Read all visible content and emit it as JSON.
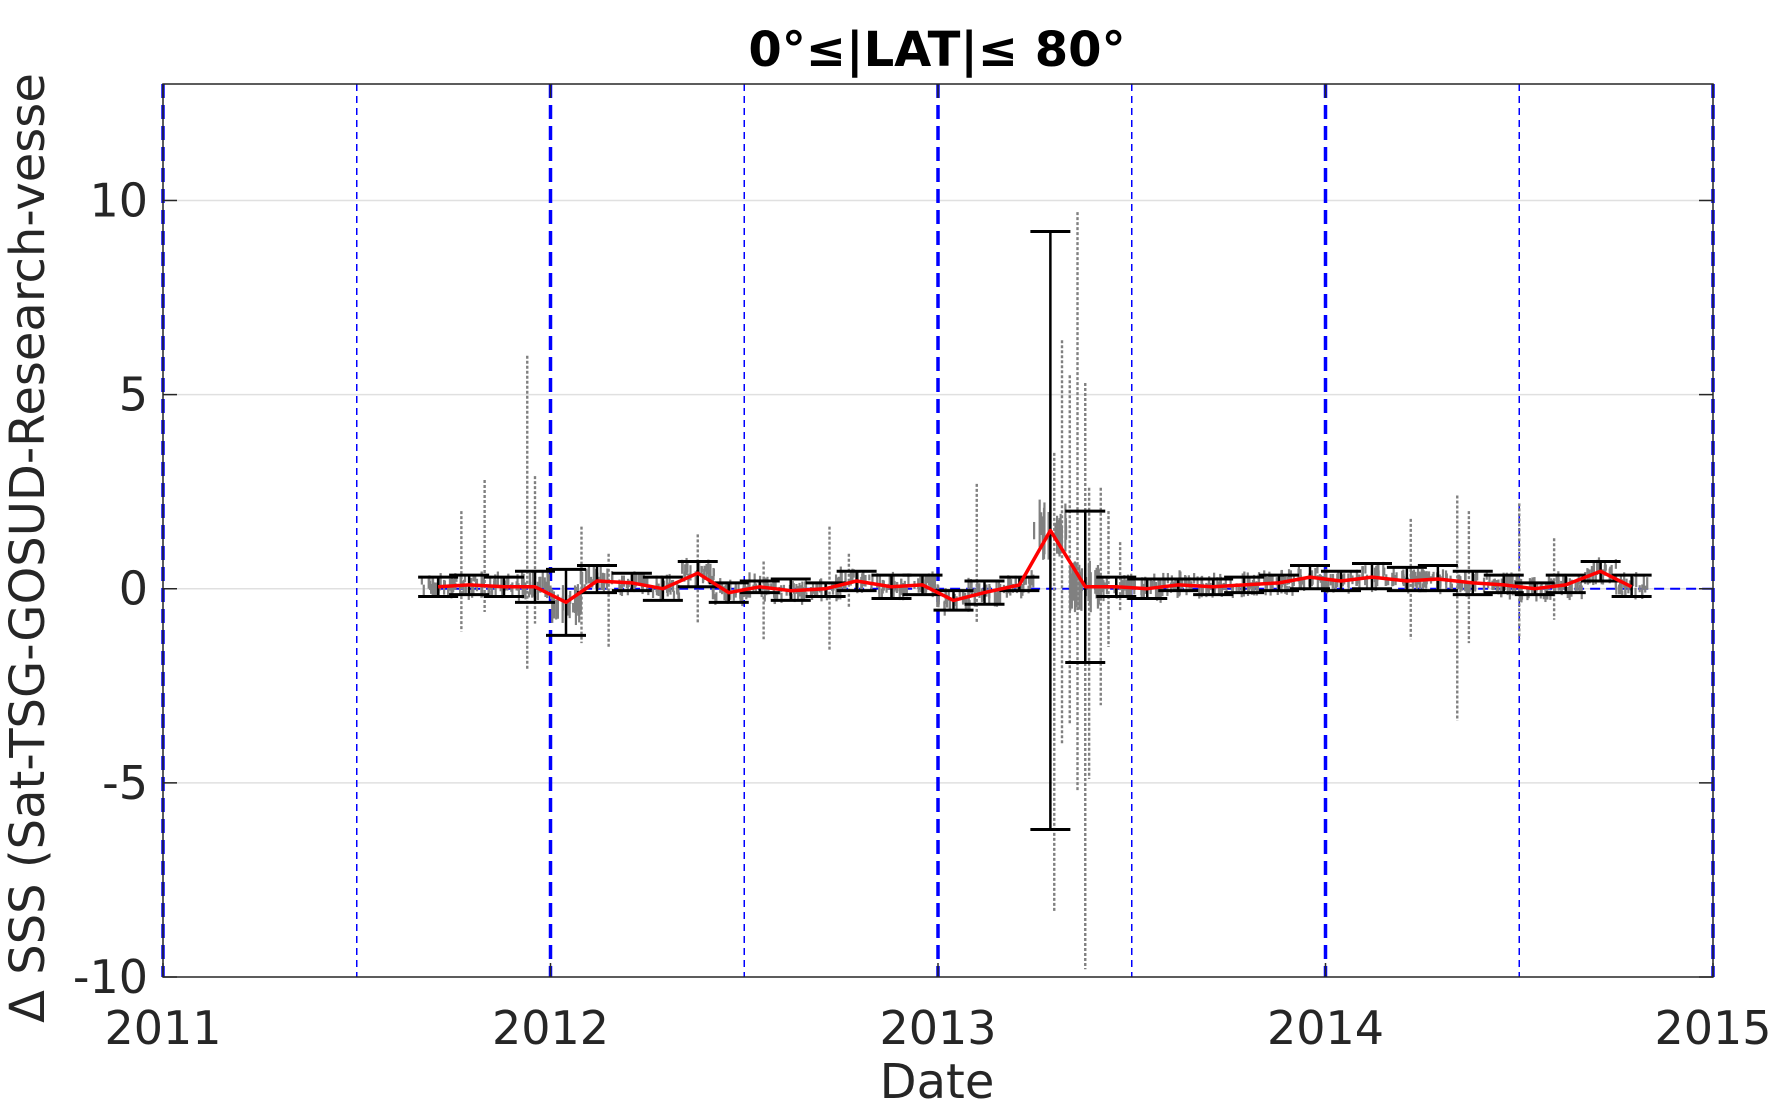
{
  "chart_data": {
    "type": "scatter",
    "title": "0°≤|LAT|≤ 80°",
    "xlabel": "Date",
    "ylabel": "Δ SSS (Sat-TSG-GOSUD-Research-vesse",
    "xlim": [
      2011,
      2015
    ],
    "ylim": [
      -10,
      13
    ],
    "x_ticks": [
      "2011",
      "2012",
      "2013",
      "2014",
      "2015"
    ],
    "y_ticks": [
      "-10",
      "-5",
      "0",
      "5",
      "10"
    ],
    "grid": "horizontal",
    "colors": {
      "scatter": "#808080",
      "mean_line": "#ff0000",
      "error_bars": "#000000",
      "reference_lines": "#0000ff",
      "grid": "#e0e0e0"
    },
    "year_lines": [
      2011,
      2012,
      2013,
      2014,
      2015
    ],
    "half_year_lines": [
      2011.5,
      2012.5,
      2013.5,
      2014.5
    ],
    "series": [
      {
        "kind": "monthly_mean",
        "x": [
          2011.71,
          2011.79,
          2011.88,
          2011.96,
          2012.04,
          2012.12,
          2012.21,
          2012.29,
          2012.38,
          2012.46,
          2012.54,
          2012.62,
          2012.71,
          2012.79,
          2012.88,
          2012.96,
          2013.04,
          2013.12,
          2013.21,
          2013.29,
          2013.38,
          2013.46,
          2013.54,
          2013.62,
          2013.71,
          2013.79,
          2013.88,
          2013.96,
          2014.04,
          2014.12,
          2014.21,
          2014.29,
          2014.38,
          2014.46,
          2014.54,
          2014.62,
          2014.71,
          2014.79
        ],
        "y": [
          0.05,
          0.1,
          0.05,
          0.05,
          -0.35,
          0.2,
          0.15,
          0.0,
          0.4,
          -0.1,
          0.05,
          -0.05,
          0.0,
          0.2,
          0.05,
          0.1,
          -0.3,
          -0.1,
          0.1,
          1.5,
          0.05,
          0.05,
          0.0,
          0.1,
          0.05,
          0.1,
          0.15,
          0.3,
          0.2,
          0.3,
          0.2,
          0.25,
          0.15,
          0.1,
          0.0,
          0.1,
          0.45,
          0.05
        ]
      },
      {
        "kind": "error_bars",
        "x": [
          2011.71,
          2011.79,
          2011.88,
          2011.96,
          2012.04,
          2012.12,
          2012.21,
          2012.29,
          2012.38,
          2012.46,
          2012.54,
          2012.62,
          2012.71,
          2012.79,
          2012.88,
          2012.96,
          2013.04,
          2013.12,
          2013.21,
          2013.29,
          2013.38,
          2013.46,
          2013.54,
          2013.62,
          2013.71,
          2013.79,
          2013.88,
          2013.96,
          2014.04,
          2014.12,
          2014.21,
          2014.29,
          2014.38,
          2014.46,
          2014.54,
          2014.62,
          2014.71,
          2014.79
        ],
        "low": [
          -0.2,
          -0.15,
          -0.2,
          -0.35,
          -1.2,
          -0.1,
          -0.05,
          -0.3,
          0.05,
          -0.35,
          -0.1,
          -0.3,
          -0.2,
          -0.05,
          -0.25,
          -0.15,
          -0.55,
          -0.4,
          -0.05,
          -6.2,
          -1.9,
          -0.2,
          -0.25,
          -0.05,
          -0.15,
          -0.1,
          -0.05,
          0.0,
          -0.05,
          0.0,
          -0.05,
          -0.05,
          -0.15,
          -0.1,
          -0.15,
          -0.1,
          0.2,
          -0.2
        ],
        "high": [
          0.3,
          0.35,
          0.3,
          0.45,
          0.5,
          0.6,
          0.4,
          0.3,
          0.7,
          0.15,
          0.2,
          0.25,
          0.15,
          0.45,
          0.35,
          0.35,
          -0.05,
          0.2,
          0.3,
          9.2,
          2.0,
          0.3,
          0.25,
          0.25,
          0.25,
          0.3,
          0.35,
          0.6,
          0.45,
          0.65,
          0.55,
          0.6,
          0.45,
          0.35,
          0.15,
          0.35,
          0.7,
          0.35
        ]
      },
      {
        "kind": "scatter_spikes",
        "x": [
          2011.77,
          2011.83,
          2011.94,
          2011.96,
          2012.08,
          2012.15,
          2012.38,
          2012.55,
          2012.72,
          2012.77,
          2013.1,
          2013.3,
          2013.32,
          2013.34,
          2013.36,
          2013.38,
          2013.39,
          2013.42,
          2013.44,
          2013.47,
          2014.22,
          2014.34,
          2014.37,
          2014.5,
          2014.59
        ],
        "low": [
          -1.1,
          -0.6,
          -2.1,
          -0.9,
          -1.4,
          -1.5,
          -0.9,
          -1.3,
          -1.6,
          -0.5,
          -0.9,
          -8.3,
          -4.0,
          -3.5,
          -5.2,
          -9.8,
          -4.9,
          -3.0,
          -1.5,
          -0.6,
          -1.3,
          -3.4,
          -1.4,
          -1.3,
          -0.8
        ],
        "high": [
          2.0,
          2.8,
          6.0,
          2.9,
          1.6,
          0.9,
          1.4,
          0.7,
          1.6,
          0.9,
          2.7,
          3.5,
          6.4,
          5.5,
          9.7,
          5.3,
          2.6,
          2.6,
          2.0,
          1.2,
          1.8,
          2.4,
          2.0,
          2.2,
          1.3
        ]
      }
    ]
  }
}
